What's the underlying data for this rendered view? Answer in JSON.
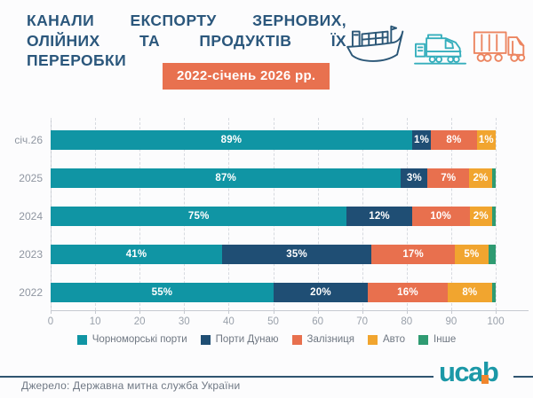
{
  "header": {
    "title_lines": [
      "КАНАЛИ ЕКСПОРТУ ЗЕРНОВИХ,",
      "ОЛІЙНИХ ТА ПРОДУКТІВ ЇХ",
      "ПЕРЕРОБКИ"
    ],
    "badge": "2022-січень 2026 рр.",
    "icons": [
      "ship-icon",
      "train-icon",
      "truck-icon"
    ]
  },
  "chart_data": {
    "type": "bar",
    "orientation": "horizontal",
    "stacked": true,
    "title": "КАНАЛИ ЕКСПОРТУ ЗЕРНОВИХ, ОЛІЙНИХ ТА ПРОДУКТІВ ЇХ ПЕРЕРОБКИ",
    "subtitle": "2022-січень 2026 рр.",
    "categories": [
      "січ.26",
      "2025",
      "2024",
      "2023",
      "2022"
    ],
    "series": [
      {
        "name": "Чорноморські порти",
        "color": "#1095A4",
        "labeled": true,
        "values": [
          89,
          87,
          75,
          41,
          55
        ]
      },
      {
        "name": "Порти Дунаю",
        "color": "#1F4E74",
        "labeled": true,
        "values": [
          1,
          3,
          12,
          35,
          20
        ]
      },
      {
        "name": "Залізниця",
        "color": "#E8704E",
        "labeled": true,
        "values": [
          8,
          7,
          10,
          17,
          16
        ]
      },
      {
        "name": "Авто",
        "color": "#F1A52F",
        "labeled": true,
        "values": [
          1,
          2,
          2,
          5,
          8
        ]
      },
      {
        "name": "Інше",
        "color": "#2F9B72",
        "labeled": false,
        "values": [
          0,
          1,
          1,
          2,
          1
        ]
      }
    ],
    "value_suffix": "%",
    "xlim": [
      0,
      100
    ],
    "x_ticks": [
      0,
      10,
      20,
      30,
      40,
      50,
      60,
      70,
      80,
      90,
      100
    ],
    "xlabel": "",
    "ylabel": "",
    "grid": "vertical-dashed",
    "legend_position": "bottom"
  },
  "footer": {
    "source": "Джерело: Державна митна служба України",
    "logo_text": "ucab"
  },
  "colors": {
    "title": "#2B577C",
    "badge_bg": "#E8714F",
    "axis": "#C6CAD1",
    "grid": "#D7DAE0",
    "tick_text": "#9AA1AB",
    "legend_text": "#6F7782",
    "rule": "#2F5470",
    "logo": "#1B98A7",
    "logo_dot": "#F0862D"
  }
}
